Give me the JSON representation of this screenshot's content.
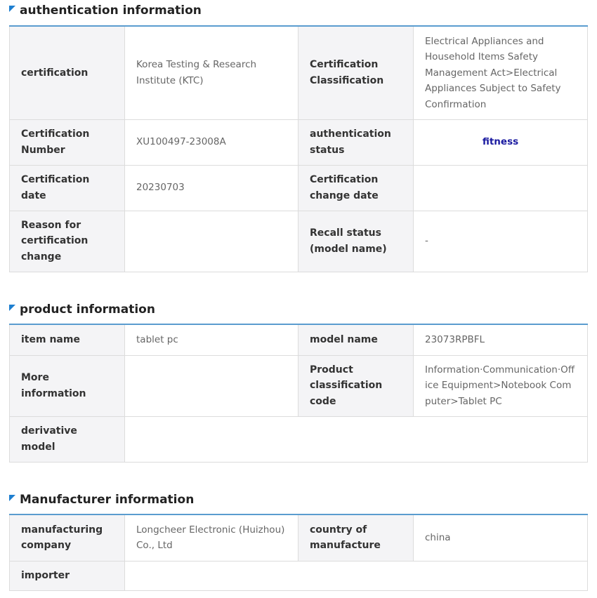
{
  "auth": {
    "title": "authentication information",
    "certification_label": "certification",
    "certification_value": "Korea Testing & Research Institute (KTC)",
    "classification_label": "Certification Classification",
    "classification_value": "Electrical Appliances and Household Items Safety Management Act>Electrical Appliances Subject to Safety Confirmation",
    "number_label": "Certification Number",
    "number_value": "XU100497-23008A",
    "status_label": "authentication status",
    "status_value": "fitness",
    "date_label": "Certification date",
    "date_value": "20230703",
    "change_date_label": "Certification change date",
    "change_date_value": "",
    "reason_label": "Reason for certification change",
    "reason_value": "",
    "recall_label": "Recall status (model name)",
    "recall_value": "-",
    "status_color": "#1a1aa0"
  },
  "product": {
    "title": "product information",
    "item_label": "item name",
    "item_value": "tablet pc",
    "model_label": "model name",
    "model_value": "23073RPBFL",
    "more_label": "More information",
    "more_value": "",
    "code_label": "Product classification code",
    "code_value": "Information·Communication·Office Equipment>Notebook Computer>Tablet PC",
    "derivative_label": "derivative model",
    "derivative_value": ""
  },
  "manufacturer": {
    "title": "Manufacturer information",
    "company_label": "manufacturing company",
    "company_value": "Longcheer Electronic (Huizhou) Co., Ltd",
    "country_label": "country of manufacture",
    "country_value": "china",
    "importer_label": "importer",
    "importer_value": ""
  }
}
